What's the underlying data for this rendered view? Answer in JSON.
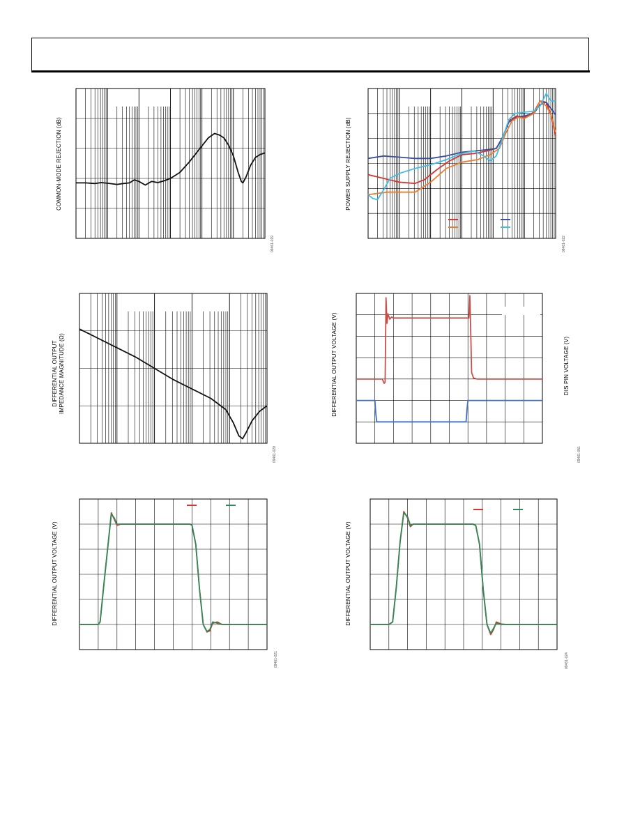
{
  "colors": {
    "grid": "#000000",
    "black": "#111111",
    "red": "#d9332b",
    "darkblue": "#3a4fa0",
    "orange": "#f07b2e",
    "cyan": "#3fbde8",
    "green": "#2e8b57",
    "disred": "#c8504a",
    "disblue": "#3f6fc2"
  },
  "figures": [
    {
      "id": "fig-cmrr",
      "ylabel": "COMMON-MODE REJECTION (dB)",
      "fig_id": "09461-019"
    },
    {
      "id": "fig-psrr",
      "ylabel": "POWER SUPPLY REJECTION (dB)",
      "fig_id": "09461-022"
    },
    {
      "id": "fig-zout",
      "ylabel_line1": "DIFFERENTIAL OUTPUT",
      "ylabel_line2": "IMPEDANCE MAGNITUDE (Ω)",
      "fig_id": "09461-020"
    },
    {
      "id": "fig-dis",
      "ylabel": "DIFFERENTIAL OUTPUT VOLTAGE (V)",
      "ylabel_right": "DIS PIN VOLTAGE (V)",
      "fig_id": "09461-051"
    },
    {
      "id": "fig-pulse1",
      "ylabel": "DIFFERENTIAL OUTPUT VOLTAGE (V)",
      "fig_id": "09461-021"
    },
    {
      "id": "fig-pulse2",
      "ylabel": "DIFFERENTIAL OUTPUT VOLTAGE (V)",
      "fig_id": "09461-024"
    }
  ],
  "chart_data": [
    {
      "type": "line",
      "ylabel": "COMMON-MODE REJECTION (dB)",
      "xscale": "log",
      "xlim": [
        0,
        6
      ],
      "ylim": [
        0,
        5
      ],
      "grid": true,
      "series": [
        {
          "color": "#111111",
          "x": [
            0,
            0.3,
            0.6,
            0.8,
            1.0,
            1.3,
            1.5,
            1.7,
            1.85,
            2.0,
            2.2,
            2.4,
            2.6,
            2.8,
            3.0,
            3.3,
            3.6,
            3.9,
            4.2,
            4.4,
            4.55,
            4.7,
            4.85,
            5.0,
            5.15,
            5.25,
            5.3,
            5.4,
            5.55,
            5.7,
            5.85,
            6.0
          ],
          "y": [
            1.85,
            1.85,
            1.83,
            1.86,
            1.84,
            1.8,
            1.83,
            1.85,
            1.95,
            1.9,
            1.78,
            1.9,
            1.86,
            1.92,
            2.0,
            2.2,
            2.55,
            2.95,
            3.35,
            3.5,
            3.45,
            3.35,
            3.1,
            2.75,
            2.2,
            1.9,
            1.85,
            2.05,
            2.45,
            2.7,
            2.8,
            2.85
          ]
        }
      ]
    },
    {
      "type": "line",
      "ylabel": "POWER SUPPLY REJECTION (dB)",
      "xscale": "log",
      "xlim": [
        0,
        6
      ],
      "ylim": [
        0,
        6
      ],
      "grid": true,
      "legend": "bottom-right",
      "series": [
        {
          "color": "#d9332b",
          "x": [
            0,
            0.5,
            1.0,
            1.5,
            1.8,
            2.2,
            2.6,
            3.0,
            3.4,
            3.8,
            4.1,
            4.3,
            4.5,
            4.75,
            5.0,
            5.3,
            5.5,
            5.7,
            5.85,
            6.0
          ],
          "y": [
            2.55,
            2.4,
            2.25,
            2.2,
            2.35,
            2.75,
            3.1,
            3.35,
            3.4,
            3.5,
            3.6,
            4.0,
            4.7,
            4.9,
            4.85,
            5.05,
            5.5,
            5.45,
            4.95,
            4.1
          ]
        },
        {
          "color": "#3a4fa0",
          "x": [
            0,
            0.5,
            1.0,
            1.5,
            2.0,
            2.5,
            3.0,
            3.4,
            3.8,
            4.1,
            4.3,
            4.5,
            4.75,
            5.0,
            5.3,
            5.5,
            5.7,
            5.85,
            6.0
          ],
          "y": [
            3.2,
            3.3,
            3.25,
            3.2,
            3.2,
            3.3,
            3.45,
            3.5,
            3.55,
            3.6,
            4.05,
            4.65,
            4.85,
            4.9,
            5.0,
            5.35,
            5.45,
            5.2,
            4.95
          ]
        },
        {
          "color": "#f07b2e",
          "x": [
            0,
            0.3,
            0.6,
            1.0,
            1.5,
            2.0,
            2.5,
            3.0,
            3.5,
            3.9,
            4.2,
            4.4,
            4.6,
            4.8,
            5.0,
            5.3,
            5.5,
            5.7,
            5.85,
            6.0
          ],
          "y": [
            1.75,
            1.8,
            1.85,
            1.85,
            1.85,
            2.25,
            2.8,
            3.05,
            3.15,
            3.35,
            3.6,
            4.2,
            4.7,
            4.85,
            4.8,
            5.0,
            5.5,
            5.3,
            4.95,
            4.25
          ]
        },
        {
          "color": "#3fbde8",
          "x": [
            0,
            0.15,
            0.3,
            0.5,
            0.7,
            1.0,
            1.5,
            2.0,
            2.5,
            3.0,
            3.4,
            3.7,
            3.9,
            4.1,
            4.3,
            4.5,
            4.7,
            5.0,
            5.3,
            5.5,
            5.7,
            5.85,
            6.0
          ],
          "y": [
            1.75,
            1.6,
            1.55,
            1.95,
            2.4,
            2.6,
            2.8,
            2.95,
            3.15,
            3.4,
            3.5,
            3.3,
            3.1,
            3.3,
            4.0,
            4.75,
            5.0,
            5.05,
            5.1,
            5.3,
            5.8,
            5.5,
            5.5
          ]
        }
      ]
    },
    {
      "type": "line",
      "ylabel": "DIFFERENTIAL OUTPUT IMPEDANCE MAGNITUDE (Ω)",
      "xscale": "log",
      "yscale": "log",
      "xlim": [
        0,
        5
      ],
      "ylim": [
        0,
        4
      ],
      "grid": true,
      "series": [
        {
          "color": "#111111",
          "x": [
            0,
            0.2,
            0.5,
            1.0,
            1.5,
            2.0,
            2.5,
            3.0,
            3.5,
            3.9,
            4.1,
            4.25,
            4.35,
            4.45,
            4.6,
            4.8,
            5.0
          ],
          "y": [
            3.05,
            2.95,
            2.8,
            2.55,
            2.3,
            2.0,
            1.7,
            1.45,
            1.2,
            0.9,
            0.55,
            0.2,
            0.12,
            0.3,
            0.6,
            0.85,
            1.0
          ]
        }
      ]
    },
    {
      "type": "line",
      "ylabel": "DIFFERENTIAL OUTPUT VOLTAGE (V)",
      "ylabel_right": "DIS PIN VOLTAGE (V)",
      "xlim": [
        0,
        10
      ],
      "ylim": [
        0,
        7
      ],
      "grid": true,
      "series": [
        {
          "color": "#c8504a",
          "x": [
            0,
            1.0,
            1.4,
            1.5,
            1.55,
            1.6,
            1.65,
            1.7,
            1.8,
            1.9,
            2.0,
            2.5,
            3.0,
            4.0,
            5.0,
            5.9,
            6.05,
            6.1,
            6.15,
            6.2,
            6.3,
            6.5,
            7.0,
            8.0,
            10.0
          ],
          "y": [
            3.0,
            3.0,
            3.0,
            2.8,
            2.85,
            6.8,
            5.6,
            6.05,
            5.8,
            5.9,
            5.85,
            5.85,
            5.85,
            5.85,
            5.85,
            5.85,
            5.85,
            6.9,
            5.2,
            3.3,
            3.05,
            3.0,
            3.0,
            3.0,
            3.0
          ]
        },
        {
          "color": "#3f6fc2",
          "x": [
            0,
            1.0,
            1.05,
            1.1,
            2.0,
            4.0,
            5.9,
            5.95,
            6.0,
            6.5,
            8.0,
            10.0
          ],
          "y": [
            2.0,
            2.0,
            1.4,
            1.0,
            1.0,
            1.0,
            1.0,
            1.6,
            2.0,
            2.0,
            2.0,
            2.0
          ]
        }
      ]
    },
    {
      "type": "line",
      "ylabel": "DIFFERENTIAL OUTPUT VOLTAGE (V)",
      "xlim": [
        0,
        10
      ],
      "ylim": [
        0,
        6
      ],
      "grid": true,
      "legend": "top-right",
      "series": [
        {
          "color": "#d9332b",
          "x": [
            0,
            1.0,
            1.1,
            1.3,
            1.5,
            1.7,
            1.85,
            2.0,
            2.2,
            2.5,
            3.0,
            4.0,
            5.0,
            5.9,
            6.0,
            6.2,
            6.4,
            6.6,
            6.8,
            6.95,
            7.1,
            7.35,
            7.6,
            8.0,
            9.0,
            10.0
          ],
          "y": [
            1.0,
            1.0,
            1.1,
            2.6,
            4.0,
            5.45,
            5.2,
            4.95,
            5.0,
            5.0,
            5.0,
            5.0,
            5.0,
            5.0,
            4.95,
            4.2,
            2.4,
            1.0,
            0.7,
            0.75,
            1.05,
            1.1,
            1.0,
            1.0,
            1.0,
            1.0
          ]
        },
        {
          "color": "#2e8b57",
          "x": [
            0,
            1.0,
            1.1,
            1.3,
            1.5,
            1.7,
            1.85,
            2.0,
            2.2,
            2.5,
            3.0,
            4.0,
            5.0,
            5.9,
            6.0,
            6.2,
            6.4,
            6.6,
            6.8,
            6.95,
            7.1,
            7.35,
            7.6,
            8.0,
            9.0,
            10.0
          ],
          "y": [
            1.0,
            1.0,
            1.1,
            2.6,
            4.0,
            5.4,
            5.25,
            5.0,
            5.0,
            5.0,
            5.0,
            5.0,
            5.0,
            5.0,
            4.95,
            4.2,
            2.4,
            1.0,
            0.72,
            0.8,
            1.1,
            1.05,
            1.0,
            1.0,
            1.0,
            1.0
          ]
        }
      ]
    },
    {
      "type": "line",
      "ylabel": "DIFFERENTIAL OUTPUT VOLTAGE (V)",
      "xlim": [
        0,
        10
      ],
      "ylim": [
        0,
        6
      ],
      "grid": true,
      "legend": "top-right",
      "series": [
        {
          "color": "#d9332b",
          "x": [
            0,
            1.0,
            1.2,
            1.4,
            1.6,
            1.8,
            2.0,
            2.15,
            2.3,
            2.5,
            3.0,
            4.0,
            5.0,
            5.5,
            5.65,
            5.85,
            6.05,
            6.25,
            6.45,
            6.6,
            6.75,
            7.0,
            7.3,
            8.0,
            9.0,
            10.0
          ],
          "y": [
            1.0,
            1.0,
            1.1,
            2.5,
            4.3,
            5.5,
            5.25,
            4.9,
            5.0,
            5.0,
            5.0,
            5.0,
            5.0,
            5.0,
            4.95,
            4.2,
            2.4,
            1.0,
            0.6,
            0.8,
            1.1,
            1.02,
            1.0,
            1.0,
            1.0,
            1.0
          ]
        },
        {
          "color": "#2e8b57",
          "x": [
            0,
            1.0,
            1.2,
            1.4,
            1.6,
            1.8,
            2.0,
            2.15,
            2.3,
            2.5,
            3.0,
            4.0,
            5.0,
            5.5,
            5.65,
            5.85,
            6.05,
            6.25,
            6.45,
            6.6,
            6.75,
            7.0,
            7.3,
            8.0,
            9.0,
            10.0
          ],
          "y": [
            1.0,
            1.0,
            1.1,
            2.5,
            4.3,
            5.45,
            5.3,
            4.95,
            5.0,
            5.0,
            5.0,
            5.0,
            5.0,
            5.0,
            4.95,
            4.2,
            2.4,
            1.0,
            0.65,
            0.85,
            1.05,
            1.0,
            1.0,
            1.0,
            1.0,
            1.0
          ]
        }
      ]
    }
  ]
}
